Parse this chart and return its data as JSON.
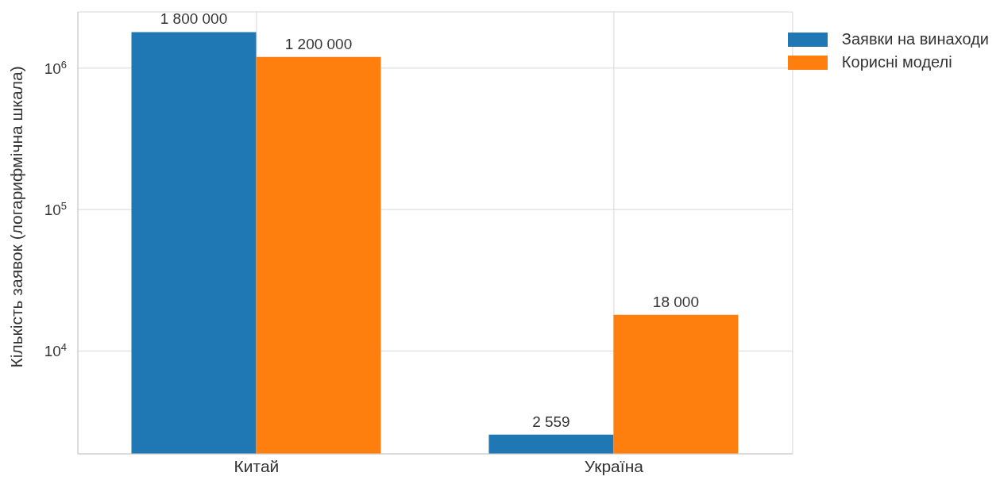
{
  "chart_data": {
    "type": "bar",
    "ylabel": "Кількість заявок (логарифмічна шкала)",
    "categories": [
      "Китай",
      "Україна"
    ],
    "series": [
      {
        "name": "Заявки на винаходи",
        "color": "#1f77b4",
        "values": [
          1800000,
          2559
        ],
        "value_labels": [
          "1 800 000",
          "2 559"
        ]
      },
      {
        "name": "Корисні моделі",
        "color": "#ff7f0e",
        "values": [
          1200000,
          18000
        ],
        "value_labels": [
          "1 200 000",
          "18 000"
        ]
      }
    ],
    "log": true,
    "ylim": [
      1870,
      2500000
    ],
    "yticks": [
      {
        "value": 10000,
        "label": "10$^{4}$"
      },
      {
        "value": 100000,
        "label": "10$^{5}$"
      },
      {
        "value": 1000000,
        "label": "10$^{6}$"
      }
    ],
    "grid": true,
    "legend": "top right"
  }
}
